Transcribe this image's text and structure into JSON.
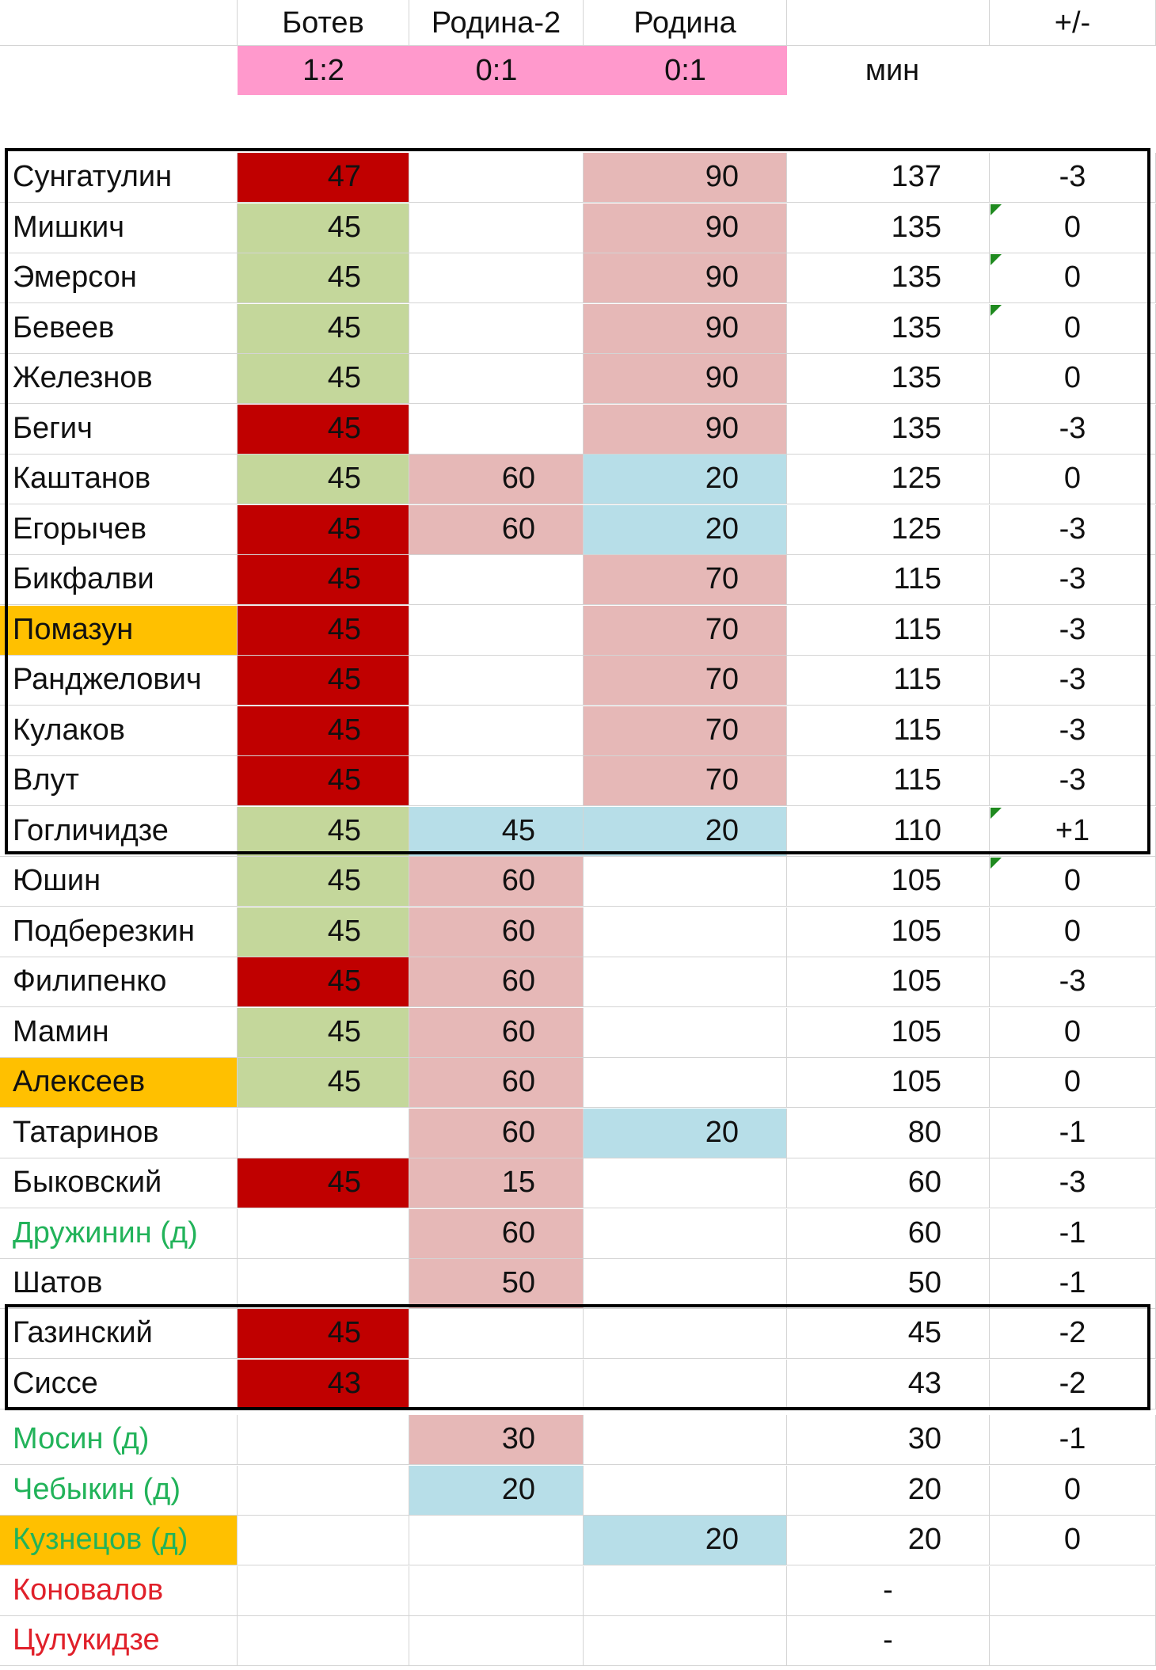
{
  "header": {
    "columns": [
      "Ботев",
      "Родина-2",
      "Родина"
    ],
    "scores": [
      "1:2",
      "0:1",
      "0:1"
    ],
    "min_label": "мин",
    "diff_label": "+/-"
  },
  "colors": {
    "red": "#c00000",
    "green": "#c4d79b",
    "pink": "#e6b8b7",
    "blue": "#b7dee8",
    "orange": "#ffc000",
    "score_pink": "#ff99cc"
  },
  "rows": [
    {
      "name": "Сунгатулин",
      "nc": "",
      "b": "47",
      "bc": "red",
      "r2": "",
      "r2c": "",
      "r": "90",
      "rc": "pink",
      "min": "137",
      "diff": "-3"
    },
    {
      "name": "Мишкич",
      "nc": "",
      "b": "45",
      "bc": "green",
      "r2": "",
      "r2c": "",
      "r": "90",
      "rc": "pink",
      "min": "135",
      "diff": "0"
    },
    {
      "name": "Эмерсон",
      "nc": "",
      "b": "45",
      "bc": "green",
      "r2": "",
      "r2c": "",
      "r": "90",
      "rc": "pink",
      "min": "135",
      "diff": "0"
    },
    {
      "name": "Бевеев",
      "nc": "",
      "b": "45",
      "bc": "green",
      "r2": "",
      "r2c": "",
      "r": "90",
      "rc": "pink",
      "min": "135",
      "diff": "0"
    },
    {
      "name": "Железнов",
      "nc": "",
      "b": "45",
      "bc": "green",
      "r2": "",
      "r2c": "",
      "r": "90",
      "rc": "pink",
      "min": "135",
      "diff": "0"
    },
    {
      "name": "Бегич",
      "nc": "",
      "b": "45",
      "bc": "red",
      "r2": "",
      "r2c": "",
      "r": "90",
      "rc": "pink",
      "min": "135",
      "diff": "-3"
    },
    {
      "name": "Каштанов",
      "nc": "",
      "b": "45",
      "bc": "green",
      "r2": "60",
      "r2c": "pink",
      "r": "20",
      "rc": "blue",
      "min": "125",
      "diff": "0"
    },
    {
      "name": "Егорычев",
      "nc": "",
      "b": "45",
      "bc": "red",
      "r2": "60",
      "r2c": "pink",
      "r": "20",
      "rc": "blue",
      "min": "125",
      "diff": "-3"
    },
    {
      "name": "Бикфалви",
      "nc": "",
      "b": "45",
      "bc": "red",
      "r2": "",
      "r2c": "",
      "r": "70",
      "rc": "pink",
      "min": "115",
      "diff": "-3"
    },
    {
      "name": "Помазун",
      "nc": "orange",
      "b": "45",
      "bc": "red",
      "r2": "",
      "r2c": "",
      "r": "70",
      "rc": "pink",
      "min": "115",
      "diff": "-3"
    },
    {
      "name": "Ранджелович",
      "nc": "",
      "b": "45",
      "bc": "red",
      "r2": "",
      "r2c": "",
      "r": "70",
      "rc": "pink",
      "min": "115",
      "diff": "-3"
    },
    {
      "name": "Кулаков",
      "nc": "",
      "b": "45",
      "bc": "red",
      "r2": "",
      "r2c": "",
      "r": "70",
      "rc": "pink",
      "min": "115",
      "diff": "-3"
    },
    {
      "name": "Влут",
      "nc": "",
      "b": "45",
      "bc": "red",
      "r2": "",
      "r2c": "",
      "r": "70",
      "rc": "pink",
      "min": "115",
      "diff": "-3"
    },
    {
      "name": "Гогличидзе",
      "nc": "",
      "b": "45",
      "bc": "green",
      "r2": "45",
      "r2c": "blue",
      "r": "20",
      "rc": "blue",
      "min": "110",
      "diff": "+1"
    },
    {
      "name": "Юшин",
      "nc": "",
      "b": "45",
      "bc": "green",
      "r2": "60",
      "r2c": "pink",
      "r": "",
      "rc": "",
      "min": "105",
      "diff": "0"
    },
    {
      "name": "Подберезкин",
      "nc": "",
      "b": "45",
      "bc": "green",
      "r2": "60",
      "r2c": "pink",
      "r": "",
      "rc": "",
      "min": "105",
      "diff": "0"
    },
    {
      "name": "Филипенко",
      "nc": "",
      "b": "45",
      "bc": "red",
      "r2": "60",
      "r2c": "pink",
      "r": "",
      "rc": "",
      "min": "105",
      "diff": "-3"
    },
    {
      "name": "Мамин",
      "nc": "",
      "b": "45",
      "bc": "green",
      "r2": "60",
      "r2c": "pink",
      "r": "",
      "rc": "",
      "min": "105",
      "diff": "0"
    },
    {
      "name": "Алексеев",
      "nc": "orange",
      "b": "45",
      "bc": "green",
      "r2": "60",
      "r2c": "pink",
      "r": "",
      "rc": "",
      "min": "105",
      "diff": "0"
    },
    {
      "name": "Татаринов",
      "nc": "",
      "b": "",
      "bc": "",
      "r2": "60",
      "r2c": "pink",
      "r": "20",
      "rc": "blue",
      "min": "80",
      "diff": "-1"
    },
    {
      "name": "Быковский",
      "nc": "",
      "b": "45",
      "bc": "red",
      "r2": "15",
      "r2c": "pink",
      "r": "",
      "rc": "",
      "min": "60",
      "diff": "-3"
    },
    {
      "name": "Дружинин (д)",
      "nc": "",
      "tc": "green",
      "b": "",
      "bc": "",
      "r2": "60",
      "r2c": "pink",
      "r": "",
      "rc": "",
      "min": "60",
      "diff": "-1"
    },
    {
      "name": "Шатов",
      "nc": "",
      "b": "",
      "bc": "",
      "r2": "50",
      "r2c": "pink",
      "r": "",
      "rc": "",
      "min": "50",
      "diff": "-1"
    },
    {
      "name": "Газинский",
      "nc": "",
      "b": "45",
      "bc": "red",
      "r2": "",
      "r2c": "",
      "r": "",
      "rc": "",
      "min": "45",
      "diff": "-2"
    },
    {
      "name": "Сиссе",
      "nc": "",
      "b": "43",
      "bc": "red",
      "r2": "",
      "r2c": "",
      "r": "",
      "rc": "",
      "min": "43",
      "diff": "-2"
    },
    {
      "name": "Мосин (д)",
      "nc": "",
      "tc": "green",
      "b": "",
      "bc": "",
      "r2": "30",
      "r2c": "pink",
      "r": "",
      "rc": "",
      "min": "30",
      "diff": "-1"
    },
    {
      "name": "Чебыкин (д)",
      "nc": "",
      "tc": "green",
      "b": "",
      "bc": "",
      "r2": "20",
      "r2c": "blue",
      "r": "",
      "rc": "",
      "min": "20",
      "diff": "0"
    },
    {
      "name": "Кузнецов (д)",
      "nc": "orange",
      "tc": "green",
      "b": "",
      "bc": "",
      "r2": "",
      "r2c": "",
      "r": "20",
      "rc": "blue",
      "min": "20",
      "diff": "0"
    },
    {
      "name": "Коновалов",
      "nc": "",
      "tc": "red",
      "b": "",
      "bc": "",
      "r2": "",
      "r2c": "",
      "r": "",
      "rc": "",
      "min": "-",
      "diff": ""
    },
    {
      "name": "Цулукидзе",
      "nc": "",
      "tc": "red",
      "b": "",
      "bc": "",
      "r2": "",
      "r2c": "",
      "r": "",
      "rc": "",
      "min": "-",
      "diff": ""
    }
  ]
}
